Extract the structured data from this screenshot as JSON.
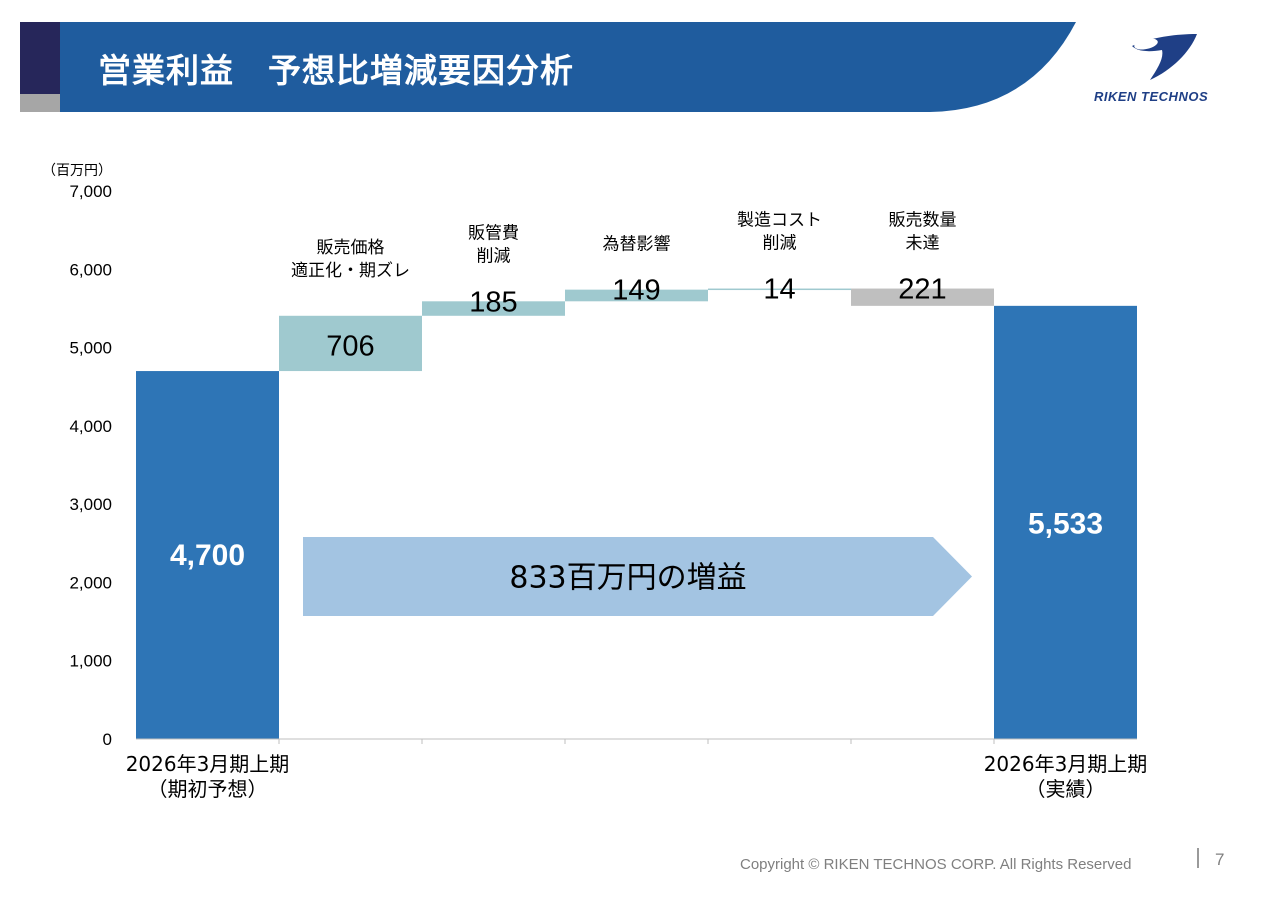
{
  "header": {
    "title": "営業利益　予想比増減要因分析",
    "logo_text": "RIKEN TECHNOS",
    "colors": {
      "band": "#1f5c9e",
      "accent_dark": "#26265a",
      "accent_grey": "#a6a6a6"
    }
  },
  "chart_data": {
    "type": "bar",
    "subtype": "waterfall",
    "unit_label": "（百万円）",
    "ylim": [
      0,
      7000
    ],
    "yticks": [
      "0",
      "1,000",
      "2,000",
      "3,000",
      "4,000",
      "5,000",
      "6,000",
      "7,000"
    ],
    "ytick_values": [
      0,
      1000,
      2000,
      3000,
      4000,
      5000,
      6000,
      7000
    ],
    "grid": false,
    "bars": [
      {
        "kind": "total",
        "category": [
          "2026年3月期上期",
          "（期初予想）"
        ],
        "value": 4700,
        "label": "4,700",
        "color": "#2e75b6"
      },
      {
        "kind": "increase",
        "category": [
          "販売価格",
          "適正化・期ズレ"
        ],
        "value": 706,
        "label": "706",
        "color": "#9fc9cf"
      },
      {
        "kind": "increase",
        "category": [
          "販管費",
          "削減"
        ],
        "value": 185,
        "label": "185",
        "color": "#9fc9cf"
      },
      {
        "kind": "increase",
        "category": [
          "為替影響"
        ],
        "value": 149,
        "label": "149",
        "color": "#9fc9cf"
      },
      {
        "kind": "increase",
        "category": [
          "製造コスト",
          "削減"
        ],
        "value": 14,
        "label": "14",
        "color": "#9fc9cf"
      },
      {
        "kind": "decrease",
        "category": [
          "販売数量",
          "未達"
        ],
        "value": -221,
        "label": "221",
        "color": "#bfbfbf"
      },
      {
        "kind": "total",
        "category": [
          "2026年3月期上期",
          "（実績）"
        ],
        "value": 5533,
        "label": "5,533",
        "color": "#2e75b6"
      }
    ],
    "annotation": {
      "text": "833百万円の増益",
      "color": "#a3c4e2"
    }
  },
  "footer": {
    "copyright": "Copyright © RIKEN TECHNOS CORP. All Rights Reserved",
    "page_number": "7"
  }
}
